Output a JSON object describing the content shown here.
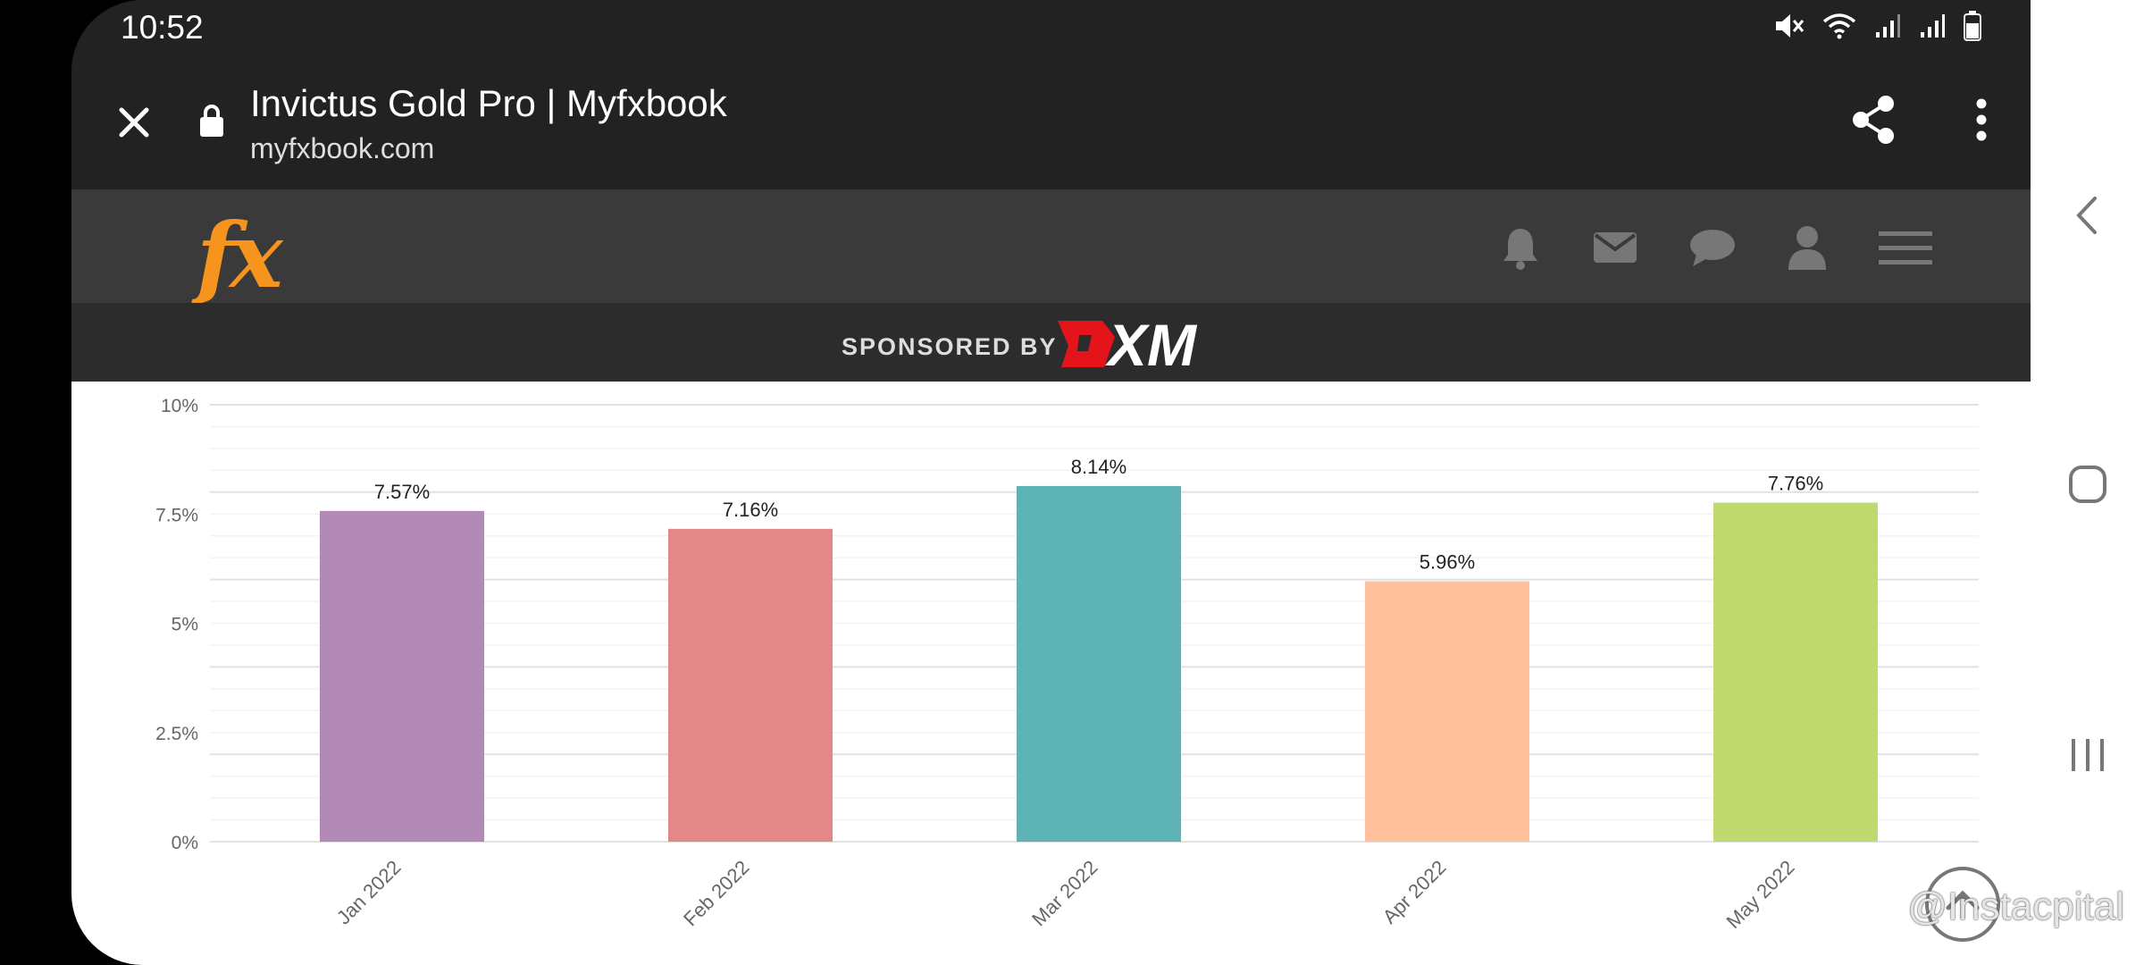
{
  "status": {
    "time": "10:52"
  },
  "browser": {
    "title": "Invictus Gold Pro | Myfxbook",
    "url": "myfxbook.com"
  },
  "site": {
    "logo": "fx",
    "sponsor_label": "SPONSORED BY",
    "sponsor_brand": "XM"
  },
  "chart_data": {
    "type": "bar",
    "categories": [
      "Jan 2022",
      "Feb 2022",
      "Mar 2022",
      "Apr 2022",
      "May 2022"
    ],
    "values": [
      7.57,
      7.16,
      8.14,
      5.96,
      7.76
    ],
    "value_labels": [
      "7.57%",
      "7.16%",
      "8.14%",
      "5.96%",
      "7.76%"
    ],
    "colors": [
      "#b389b5",
      "#e28987",
      "#5db3b5",
      "#ffc09b",
      "#bfd96f"
    ],
    "yticks": [
      "0%",
      "2.5%",
      "5%",
      "7.5%",
      "10%"
    ],
    "ylim": [
      0,
      10
    ],
    "grid": true
  },
  "watermark": "@Instacpital"
}
